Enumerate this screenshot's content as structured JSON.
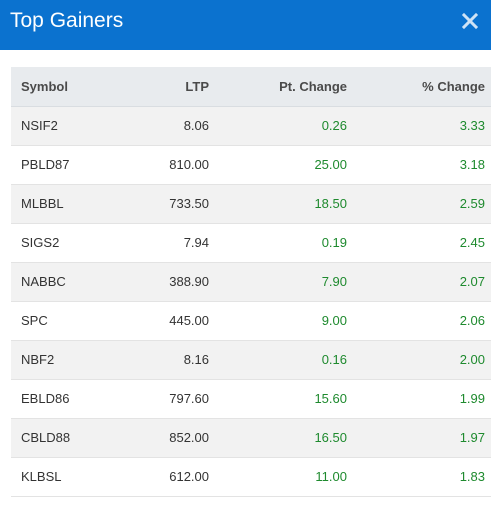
{
  "header": {
    "title": "Top Gainers",
    "close_icon": "close-icon"
  },
  "colors": {
    "header_bg": "#0b72cf",
    "gain_text": "#1e8a2e",
    "table_header_bg": "#e8ebee"
  },
  "table": {
    "columns": [
      "Symbol",
      "LTP",
      "Pt. Change",
      "% Change"
    ],
    "rows": [
      {
        "symbol": "NSIF2",
        "ltp": "8.06",
        "pt_change": "0.26",
        "pct_change": "3.33"
      },
      {
        "symbol": "PBLD87",
        "ltp": "810.00",
        "pt_change": "25.00",
        "pct_change": "3.18"
      },
      {
        "symbol": "MLBBL",
        "ltp": "733.50",
        "pt_change": "18.50",
        "pct_change": "2.59"
      },
      {
        "symbol": "SIGS2",
        "ltp": "7.94",
        "pt_change": "0.19",
        "pct_change": "2.45"
      },
      {
        "symbol": "NABBC",
        "ltp": "388.90",
        "pt_change": "7.90",
        "pct_change": "2.07"
      },
      {
        "symbol": "SPC",
        "ltp": "445.00",
        "pt_change": "9.00",
        "pct_change": "2.06"
      },
      {
        "symbol": "NBF2",
        "ltp": "8.16",
        "pt_change": "0.16",
        "pct_change": "2.00"
      },
      {
        "symbol": "EBLD86",
        "ltp": "797.60",
        "pt_change": "15.60",
        "pct_change": "1.99"
      },
      {
        "symbol": "CBLD88",
        "ltp": "852.00",
        "pt_change": "16.50",
        "pct_change": "1.97"
      },
      {
        "symbol": "KLBSL",
        "ltp": "612.00",
        "pt_change": "11.00",
        "pct_change": "1.83"
      }
    ]
  }
}
